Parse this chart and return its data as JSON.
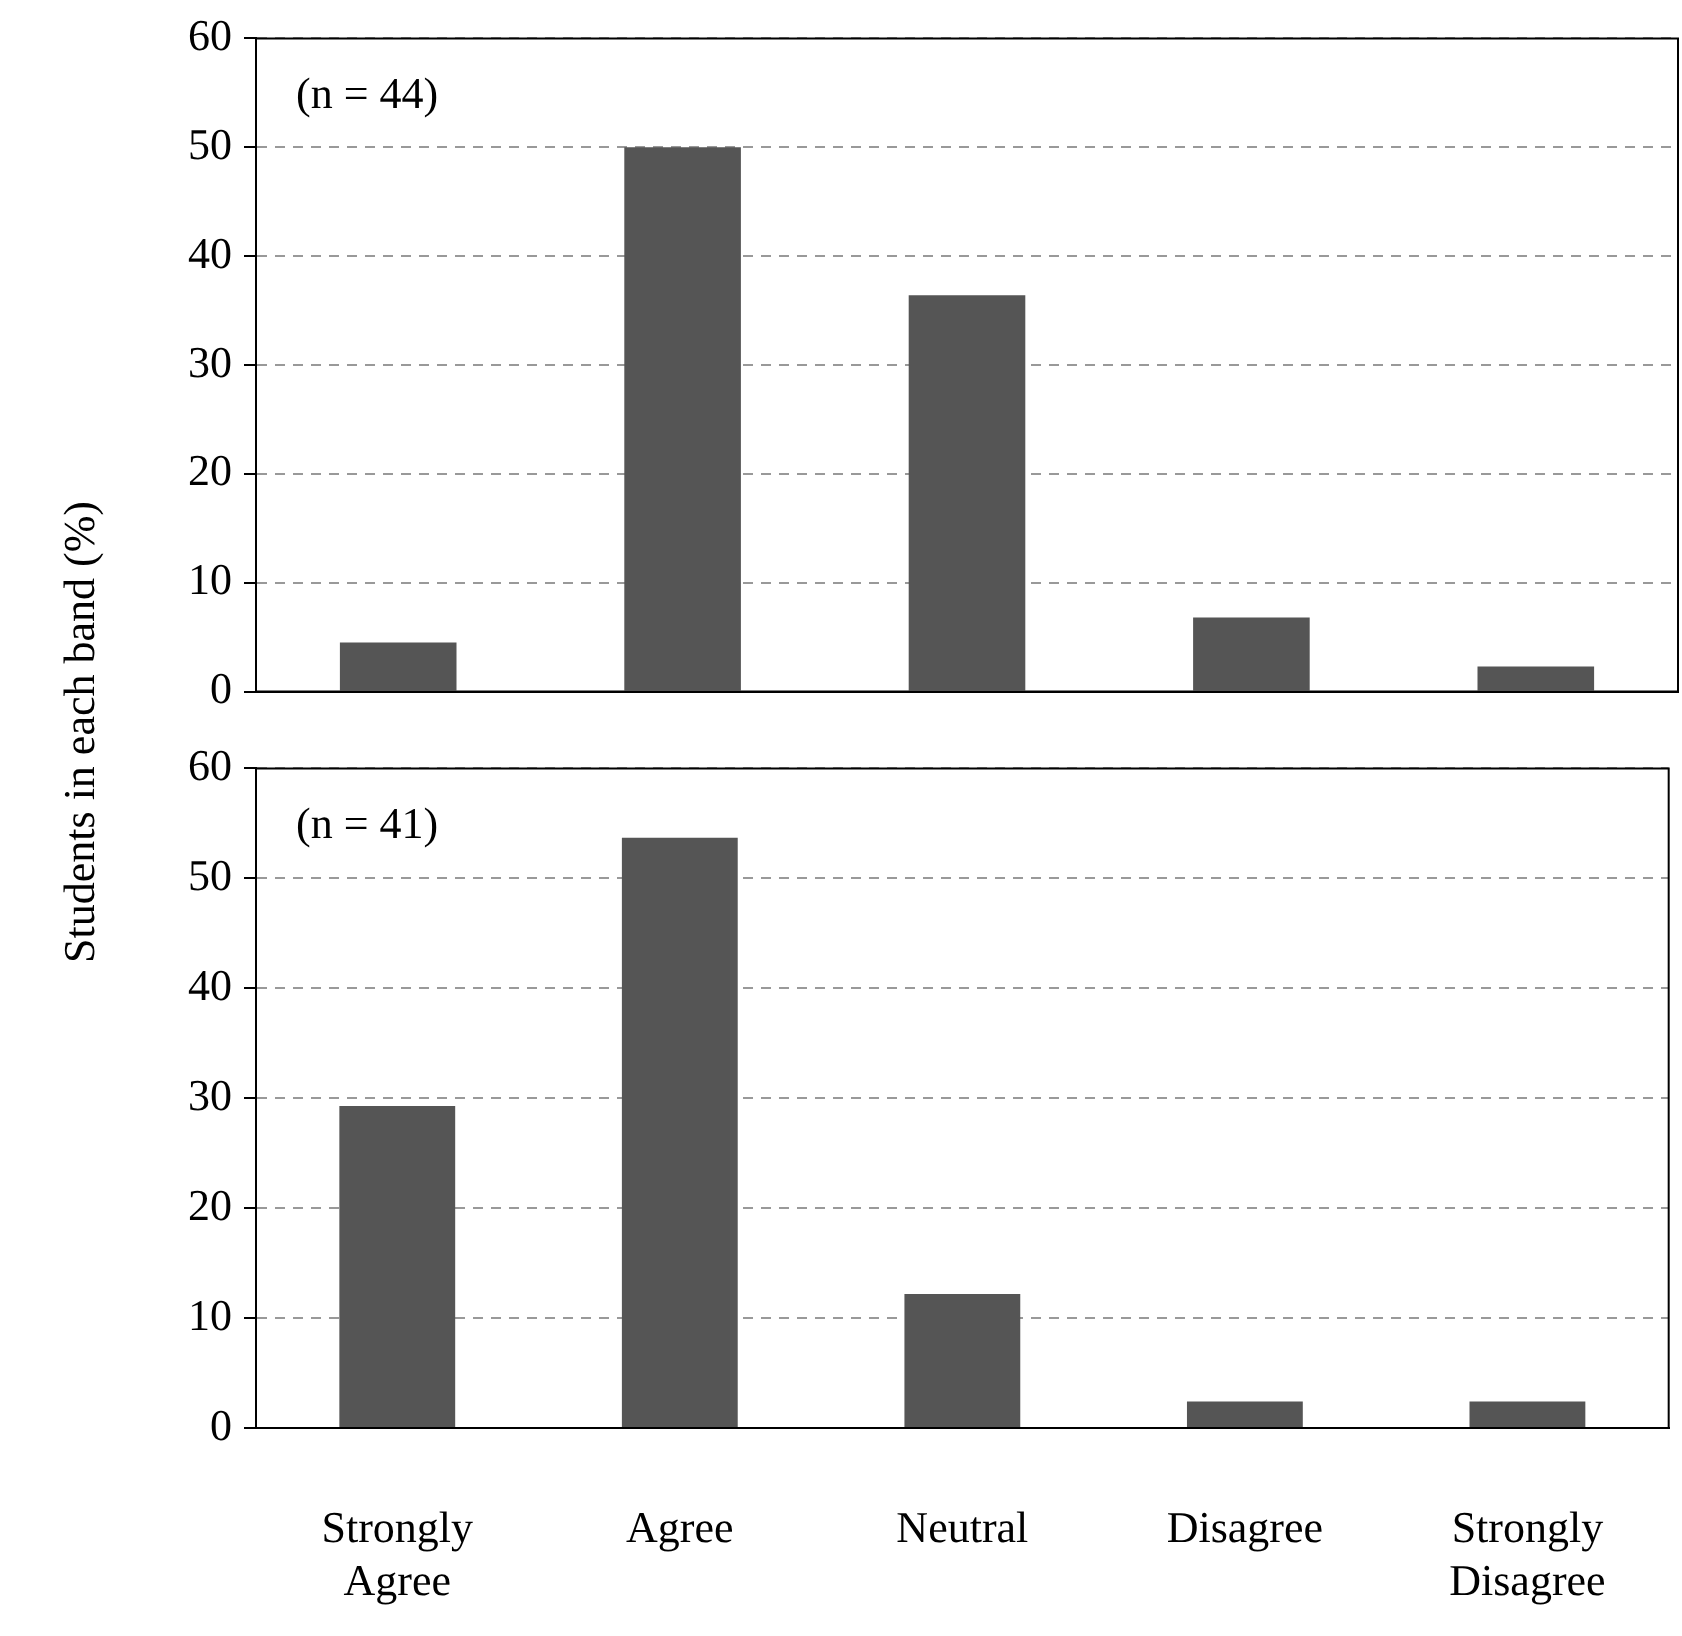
{
  "chart_data": [
    {
      "type": "bar",
      "ylabel": "Students in each band (%)",
      "categories": [
        null,
        null,
        null,
        null,
        null
      ],
      "values": [
        4.5,
        50,
        36.4,
        6.8,
        2.3
      ],
      "color": "#555555",
      "ylim": [
        0,
        60
      ],
      "yticks": [
        0,
        10,
        20,
        30,
        40,
        50,
        60
      ],
      "grid": "y",
      "tick_labels": "y",
      "annotations": [
        "(n = 44)"
      ]
    },
    {
      "type": "bar",
      "categories": [
        "Strongly Agree",
        "Agree",
        "Neutral",
        "Disagree",
        "Strongly Disagree"
      ],
      "values": [
        29.3,
        53.7,
        12.2,
        2.4,
        2.4
      ],
      "color": "#555555",
      "ylim": [
        0,
        60
      ],
      "yticks": [
        0,
        10,
        20,
        30,
        40,
        50,
        60
      ],
      "grid": "y",
      "annotations": [
        "(n = 41)"
      ]
    }
  ]
}
